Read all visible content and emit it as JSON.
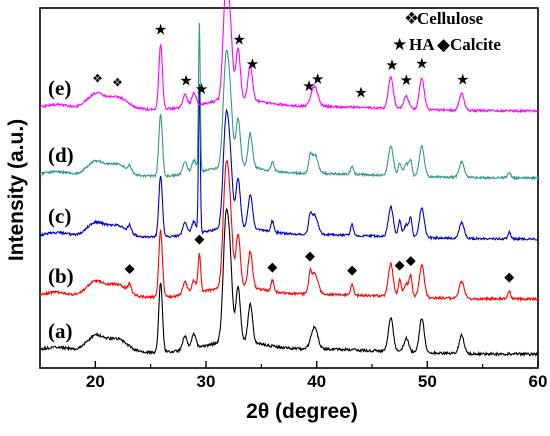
{
  "chart_data": {
    "type": "line",
    "xlabel": "2θ (degree)",
    "ylabel": "Intensity (a.u.)",
    "xlim": [
      15,
      60
    ],
    "xticks": [
      20,
      30,
      40,
      50,
      60
    ],
    "show_y_ticks": false,
    "grid": false,
    "legend": {
      "placement": "top-right",
      "entries": [
        {
          "symbol": "❖",
          "label": "Cellulose"
        },
        {
          "symbol": "★",
          "label": "HA"
        },
        {
          "symbol": "◆",
          "label": "Calcite"
        }
      ]
    },
    "series": [
      {
        "name": "(a)",
        "color": "#000000",
        "offset": 0,
        "scale": 1.0,
        "markers": [],
        "cellulose": true,
        "calcite_strength": 0,
        "calcite_sharp": 0
      },
      {
        "name": "(b)",
        "color": "#ff0000",
        "offset": 55,
        "scale": 0.95,
        "markers": [
          {
            "symbol": "◆",
            "x": [
              23.1,
              29.4,
              36.0,
              39.4,
              43.2,
              47.5,
              48.5,
              57.4
            ]
          }
        ],
        "cellulose": true,
        "calcite_strength": 1,
        "calcite_sharp": 0
      },
      {
        "name": "(c)",
        "color": "#0000cc",
        "offset": 115,
        "scale": 0.88,
        "markers": [],
        "cellulose": true,
        "calcite_strength": 1,
        "calcite_sharp": 1.3
      },
      {
        "name": "(d)",
        "color": "#339988",
        "offset": 176,
        "scale": 0.88,
        "markers": [],
        "cellulose": true,
        "calcite_strength": 0.8,
        "calcite_sharp": 1.3
      },
      {
        "name": "(e)",
        "color": "#ff00ff",
        "offset": 243,
        "scale": 0.92,
        "markers": [
          {
            "symbol": "❖",
            "x": [
              20.2,
              22.0
            ]
          },
          {
            "symbol": "★",
            "x": [
              25.9,
              28.2,
              29.6,
              32.0,
              33.0,
              34.2,
              39.3,
              40.1,
              44.0,
              46.8,
              48.1,
              49.5,
              53.2
            ]
          }
        ],
        "cellulose": true,
        "calcite_strength": 0,
        "calcite_sharp": 0
      }
    ]
  }
}
